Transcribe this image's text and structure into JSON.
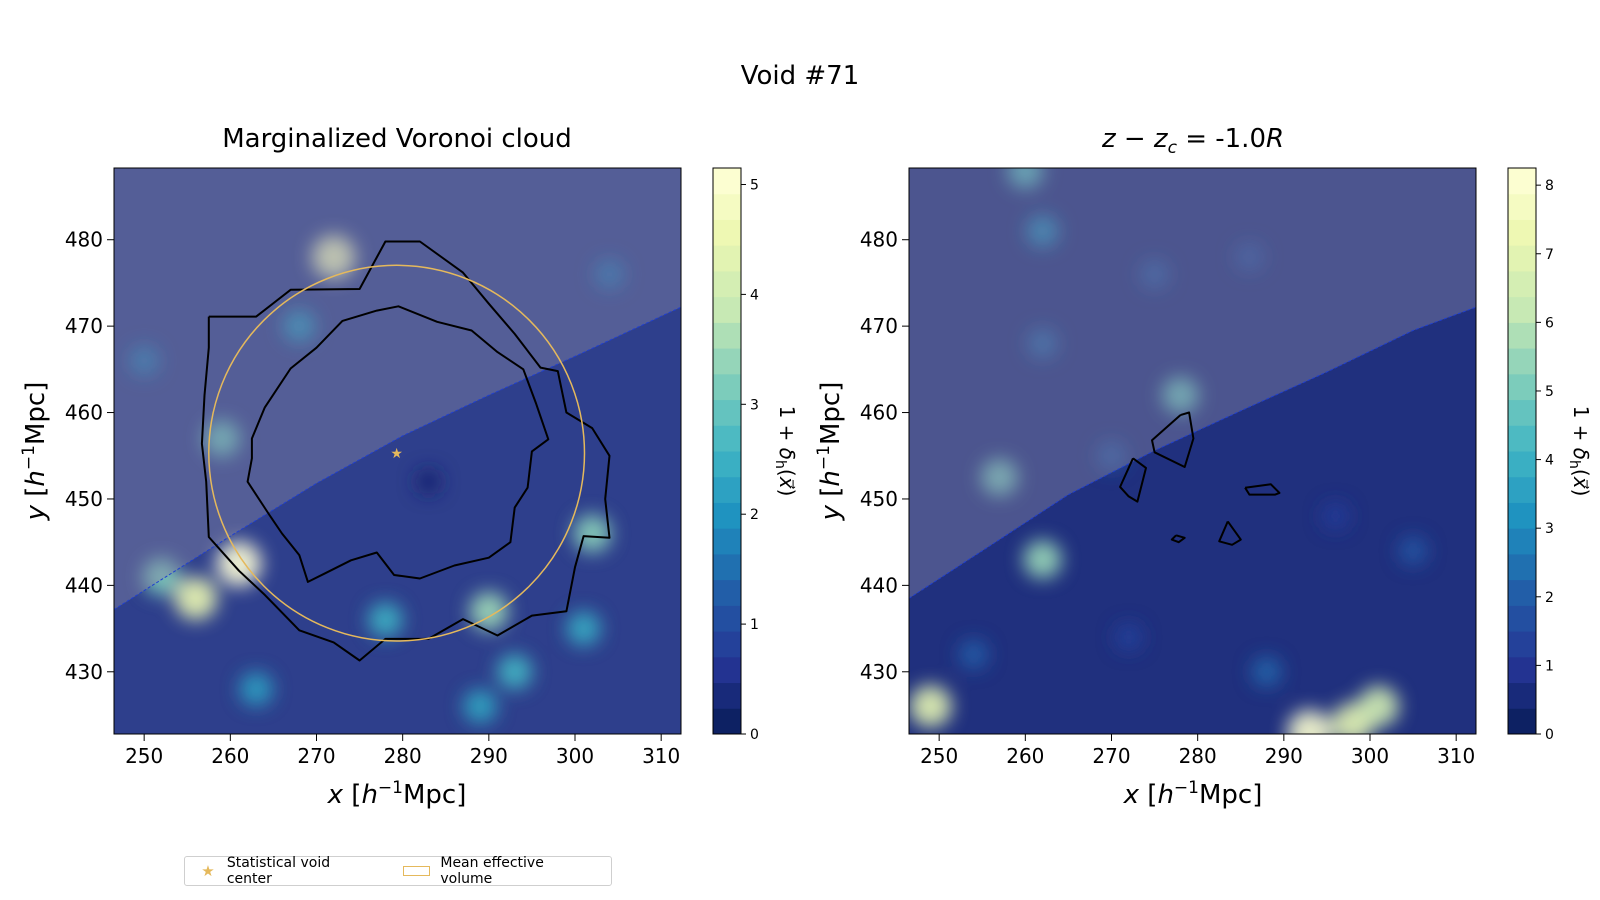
{
  "suptitle": "Void #71",
  "legend": {
    "center_label": "Statistical void center",
    "volume_label": "Mean effective volume",
    "center_color": "#e5b95c",
    "volume_color": "#e5b95c"
  },
  "chart_data": [
    {
      "type": "heatmap",
      "title": "Marginalized Voronoi cloud",
      "xlabel": "x [h⁻¹Mpc]",
      "ylabel": "y [h⁻¹Mpc]",
      "xlim": [
        246.5,
        312.3
      ],
      "ylim": [
        422.8,
        488.3
      ],
      "xticks": [
        250,
        260,
        270,
        280,
        290,
        300,
        310
      ],
      "yticks": [
        430,
        440,
        450,
        460,
        470,
        480
      ],
      "colorbar": {
        "label": "1+δₕ(x⃗)",
        "min": 0,
        "max": 5.15,
        "ticks": [
          0,
          1,
          2,
          3,
          4,
          5
        ],
        "colormap": "YlGnBu_r"
      },
      "void_center": [
        279.3,
        455.3
      ],
      "effective_radius": 21.8,
      "survey_boundary": [
        [
          246.5,
          437.2
        ],
        [
          260,
          445.7
        ],
        [
          270,
          451.8
        ],
        [
          280,
          457.3
        ],
        [
          290,
          462.0
        ],
        [
          300,
          466.5
        ],
        [
          312.3,
          472.2
        ]
      ],
      "contours": [
        [
          [
            257.5,
            471.1
          ],
          [
            263,
            471.1
          ],
          [
            267,
            474.2
          ],
          [
            275,
            474.3
          ],
          [
            278,
            479.8
          ],
          [
            282,
            479.8
          ],
          [
            287,
            476.2
          ],
          [
            290,
            472.6
          ],
          [
            293,
            469.1
          ],
          [
            296,
            465.2
          ],
          [
            298,
            464.8
          ],
          [
            299,
            460.0
          ],
          [
            302,
            458.2
          ],
          [
            304,
            455.0
          ],
          [
            303.5,
            450.0
          ],
          [
            304,
            445.5
          ],
          [
            301,
            445.7
          ],
          [
            300,
            442.1
          ],
          [
            299,
            437.0
          ],
          [
            295,
            436.5
          ],
          [
            291,
            434.2
          ],
          [
            287,
            436.1
          ],
          [
            283,
            433.8
          ],
          [
            278,
            433.8
          ],
          [
            275,
            431.3
          ],
          [
            272,
            433.4
          ],
          [
            268,
            434.8
          ],
          [
            264,
            438.9
          ],
          [
            261,
            441.7
          ],
          [
            257.5,
            445.6
          ],
          [
            257.2,
            452.0
          ],
          [
            256.7,
            456.4
          ],
          [
            257.0,
            462.0
          ],
          [
            257.5,
            467.5
          ],
          [
            257.5,
            471.1
          ]
        ],
        [
          [
            264.0,
            460.6
          ],
          [
            267.0,
            465.1
          ],
          [
            270.0,
            467.5
          ],
          [
            273.0,
            470.6
          ],
          [
            277.0,
            471.8
          ],
          [
            279.5,
            472.3
          ],
          [
            284.0,
            470.5
          ],
          [
            288.0,
            469.5
          ],
          [
            291.0,
            467.0
          ],
          [
            294.0,
            465.0
          ],
          [
            295.5,
            461.0
          ],
          [
            296.9,
            456.9
          ],
          [
            295.0,
            455.5
          ],
          [
            294.5,
            451.3
          ],
          [
            293.0,
            449.0
          ],
          [
            292.5,
            445.0
          ],
          [
            290.0,
            443.2
          ],
          [
            286.0,
            442.3
          ],
          [
            282.0,
            440.8
          ],
          [
            279.0,
            441.2
          ],
          [
            277.0,
            443.8
          ],
          [
            274.0,
            442.9
          ],
          [
            271.0,
            441.4
          ],
          [
            269.0,
            440.4
          ],
          [
            268.0,
            443.5
          ],
          [
            266.0,
            446.0
          ],
          [
            264.5,
            448.2
          ],
          [
            262.0,
            452.0
          ],
          [
            262.5,
            454.7
          ],
          [
            262.5,
            457.0
          ],
          [
            264.0,
            460.6
          ]
        ]
      ],
      "density_peaks": [
        [
          272,
          478,
          4.7
        ],
        [
          261,
          442.5,
          5.1
        ],
        [
          256,
          438.5,
          4.5
        ],
        [
          259,
          457,
          3.0
        ],
        [
          252,
          441,
          3.2
        ],
        [
          290,
          437,
          3.5
        ],
        [
          302,
          446,
          3.3
        ],
        [
          283,
          452,
          0.25
        ],
        [
          263,
          428,
          2.2
        ],
        [
          293,
          430,
          2.6
        ],
        [
          278,
          436,
          2.5
        ],
        [
          301,
          435,
          2.4
        ],
        [
          250,
          466,
          1.6
        ],
        [
          304,
          476,
          1.5
        ],
        [
          268,
          470,
          2.0
        ],
        [
          289,
          426,
          2.3
        ]
      ]
    },
    {
      "type": "heatmap",
      "title": "z − z_c = -1.0R",
      "title_parts": {
        "pre": "z − z",
        "sub": "c",
        "post": " = -1.0",
        "italic_end": "R"
      },
      "xlabel": "x [h⁻¹Mpc]",
      "ylabel": "y [h⁻¹Mpc]",
      "xlim": [
        246.5,
        312.3
      ],
      "ylim": [
        422.8,
        488.3
      ],
      "xticks": [
        250,
        260,
        270,
        280,
        290,
        300,
        310
      ],
      "yticks": [
        430,
        440,
        450,
        460,
        470,
        480
      ],
      "colorbar": {
        "label": "1+δₕ(x⃗)",
        "min": 0,
        "max": 8.25,
        "ticks": [
          0,
          1,
          2,
          3,
          4,
          5,
          6,
          7,
          8
        ],
        "colormap": "YlGnBu_r"
      },
      "survey_boundary": [
        [
          246.5,
          438.5
        ],
        [
          255,
          444.0
        ],
        [
          265,
          450.5
        ],
        [
          275,
          455.6
        ],
        [
          285,
          460.2
        ],
        [
          295,
          464.7
        ],
        [
          305,
          469.5
        ],
        [
          312.3,
          472.2
        ]
      ],
      "contours": [
        [
          [
            278.0,
            459.7
          ],
          [
            279.0,
            460.0
          ],
          [
            279.5,
            457.0
          ],
          [
            278.5,
            453.7
          ],
          [
            275.0,
            455.4
          ],
          [
            274.7,
            456.8
          ],
          [
            278.0,
            459.7
          ]
        ],
        [
          [
            272.5,
            454.7
          ],
          [
            274.0,
            453.6
          ],
          [
            273.0,
            449.7
          ],
          [
            272.0,
            450.3
          ],
          [
            271.0,
            451.4
          ],
          [
            272.5,
            454.7
          ]
        ],
        [
          [
            285.5,
            451.3
          ],
          [
            288.5,
            451.7
          ],
          [
            289.5,
            450.7
          ],
          [
            289.0,
            450.5
          ],
          [
            286.0,
            450.5
          ],
          [
            285.5,
            451.3
          ]
        ],
        [
          [
            283.5,
            447.4
          ],
          [
            285.0,
            445.3
          ],
          [
            284.0,
            444.7
          ],
          [
            282.5,
            445.1
          ],
          [
            283.5,
            447.4
          ]
        ],
        [
          [
            277.5,
            445.8
          ],
          [
            278.5,
            445.5
          ],
          [
            277.8,
            445.0
          ],
          [
            277.0,
            445.3
          ],
          [
            277.5,
            445.8
          ]
        ]
      ],
      "density_peaks": [
        [
          260,
          488,
          4.5
        ],
        [
          262,
          481,
          3.0
        ],
        [
          257,
          452.5,
          5.0
        ],
        [
          262,
          443,
          5.5
        ],
        [
          278,
          462,
          4.8
        ],
        [
          249,
          426,
          7.0
        ],
        [
          293,
          423,
          8.0
        ],
        [
          298,
          424,
          7.0
        ],
        [
          301,
          426,
          6.5
        ],
        [
          262,
          468,
          2.2
        ],
        [
          275,
          476,
          1.8
        ],
        [
          286,
          478,
          1.6
        ],
        [
          270,
          455,
          1.8
        ],
        [
          296,
          448,
          1.2
        ],
        [
          305,
          444,
          1.8
        ],
        [
          254,
          432,
          2.0
        ],
        [
          288,
          430,
          2.2
        ],
        [
          272,
          434,
          1.3
        ]
      ]
    }
  ]
}
